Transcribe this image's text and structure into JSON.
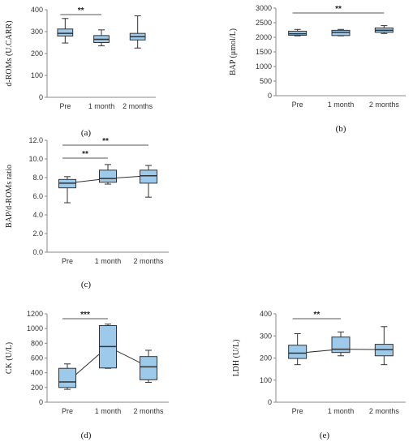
{
  "chart_data": [
    {
      "id": "a",
      "type": "box",
      "panel_label": "(a)",
      "ylabel": "d-ROMs (U.CARR)",
      "categories": [
        "Pre",
        "1 month",
        "2 months"
      ],
      "yticks": [
        "0",
        "100",
        "200",
        "300",
        "400"
      ],
      "ylim": [
        0,
        400
      ],
      "boxes": [
        {
          "min": 248,
          "q1": 280,
          "median": 292,
          "q3": 312,
          "max": 360
        },
        {
          "min": 235,
          "q1": 250,
          "median": 265,
          "q3": 282,
          "max": 308
        },
        {
          "min": 225,
          "q1": 262,
          "median": 277,
          "q3": 292,
          "max": 372
        }
      ],
      "mean_line": false,
      "significance": [
        {
          "from": 0,
          "to": 1,
          "label": "**"
        }
      ],
      "box_color": "#9dc9ea",
      "stroke_color": "#333333"
    },
    {
      "id": "b",
      "type": "box",
      "panel_label": "(b)",
      "ylabel": "BAP (μmol/L)",
      "categories": [
        "Pre",
        "1 month",
        "2 months"
      ],
      "yticks": [
        "0",
        "500",
        "1000",
        "1500",
        "2000",
        "2500",
        "3000"
      ],
      "ylim": [
        0,
        3000
      ],
      "boxes": [
        {
          "min": 2050,
          "q1": 2070,
          "median": 2120,
          "q3": 2210,
          "max": 2270
        },
        {
          "min": 2050,
          "q1": 2060,
          "median": 2170,
          "q3": 2240,
          "max": 2270
        },
        {
          "min": 2130,
          "q1": 2170,
          "median": 2240,
          "q3": 2320,
          "max": 2400
        }
      ],
      "mean_line": false,
      "significance": [
        {
          "from": 0,
          "to": 2,
          "label": "**"
        }
      ],
      "box_color": "#9dc9ea",
      "stroke_color": "#333333"
    },
    {
      "id": "c",
      "type": "box",
      "panel_label": "(c)",
      "ylabel": "BAP/d-ROMs ratio",
      "categories": [
        "Pre",
        "1 month",
        "2 months"
      ],
      "yticks": [
        "0.0",
        "2.0",
        "4.0",
        "6.0",
        "8.0",
        "10.0",
        "12.0"
      ],
      "ylim": [
        0,
        12
      ],
      "boxes": [
        {
          "min": 5.3,
          "q1": 6.9,
          "median": 7.4,
          "q3": 7.8,
          "max": 8.1
        },
        {
          "min": 7.3,
          "q1": 7.5,
          "median": 7.9,
          "q3": 8.8,
          "max": 9.4
        },
        {
          "min": 5.9,
          "q1": 7.4,
          "median": 8.2,
          "q3": 8.8,
          "max": 9.3
        }
      ],
      "mean_line": true,
      "significance": [
        {
          "from": 0,
          "to": 2,
          "label": "**"
        },
        {
          "from": 0,
          "to": 1,
          "label": "**"
        }
      ],
      "box_color": "#9dc9ea",
      "stroke_color": "#333333"
    },
    {
      "id": "d",
      "type": "box",
      "panel_label": "(d)",
      "ylabel": "CK (U/L)",
      "categories": [
        "Pre",
        "1 month",
        "2 months"
      ],
      "yticks": [
        "0",
        "200",
        "400",
        "600",
        "800",
        "1000",
        "1200"
      ],
      "ylim": [
        0,
        1200
      ],
      "boxes": [
        {
          "min": 175,
          "q1": 200,
          "median": 275,
          "q3": 460,
          "max": 520
        },
        {
          "min": 460,
          "q1": 465,
          "median": 755,
          "q3": 1040,
          "max": 1060
        },
        {
          "min": 270,
          "q1": 305,
          "median": 480,
          "q3": 620,
          "max": 705
        }
      ],
      "mean_line": true,
      "significance": [
        {
          "from": 0,
          "to": 1,
          "label": "***"
        }
      ],
      "box_color": "#9dc9ea",
      "stroke_color": "#333333"
    },
    {
      "id": "e",
      "type": "box",
      "panel_label": "(e)",
      "ylabel": "LDH (U/L)",
      "categories": [
        "Pre",
        "1 month",
        "2 months"
      ],
      "yticks": [
        "0",
        "100",
        "200",
        "300",
        "400"
      ],
      "ylim": [
        0,
        400
      ],
      "boxes": [
        {
          "min": 170,
          "q1": 198,
          "median": 222,
          "q3": 258,
          "max": 310
        },
        {
          "min": 210,
          "q1": 225,
          "median": 240,
          "q3": 295,
          "max": 318
        },
        {
          "min": 170,
          "q1": 210,
          "median": 238,
          "q3": 262,
          "max": 342
        }
      ],
      "mean_line": true,
      "significance": [
        {
          "from": 0,
          "to": 1,
          "label": "**"
        }
      ],
      "box_color": "#9dc9ea",
      "stroke_color": "#333333"
    }
  ]
}
